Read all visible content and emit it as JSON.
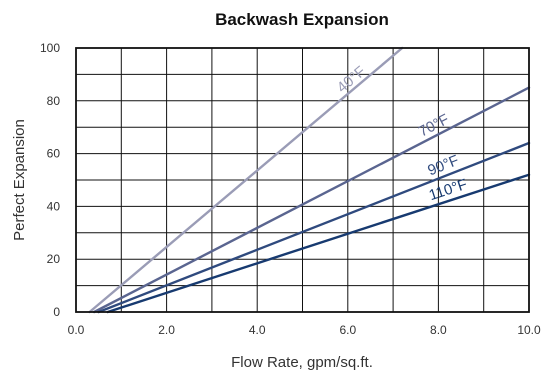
{
  "chart_data": {
    "type": "line",
    "title": "Backwash Expansion",
    "xlabel": "Flow Rate, gpm/sq.ft.",
    "ylabel": "Perfect Expansion",
    "xlim": [
      0,
      10
    ],
    "ylim": [
      0,
      100
    ],
    "x_ticks": [
      "0.0",
      "2.0",
      "4.0",
      "6.0",
      "8.0",
      "10.0"
    ],
    "y_ticks": [
      "0",
      "20",
      "40",
      "60",
      "80",
      "100"
    ],
    "grid": true,
    "legend": "none",
    "series": [
      {
        "name": "40°F",
        "color": "#9a9cb6",
        "x": [
          0.3,
          7.2
        ],
        "y": [
          0,
          100
        ]
      },
      {
        "name": "70°F",
        "color": "#5a6590",
        "x": [
          0.4,
          10.0
        ],
        "y": [
          0,
          85
        ]
      },
      {
        "name": "90°F",
        "color": "#2f4a7e",
        "x": [
          0.5,
          10.0
        ],
        "y": [
          0,
          64
        ]
      },
      {
        "name": "110°F",
        "color": "#173a70",
        "x": [
          0.7,
          10.0
        ],
        "y": [
          0,
          52
        ]
      }
    ]
  }
}
